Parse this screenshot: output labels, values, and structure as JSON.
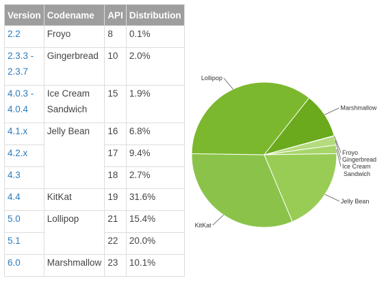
{
  "table": {
    "headers": [
      "Version",
      "Codename",
      "API",
      "Distribution"
    ],
    "rows": [
      {
        "version": "2.2",
        "codename": "Froyo",
        "api": "8",
        "distribution": "0.1%"
      },
      {
        "version": "2.3.3 -\n2.3.7",
        "codename": "Gingerbread",
        "api": "10",
        "distribution": "2.0%"
      },
      {
        "version": "4.0.3 -\n4.0.4",
        "codename": "Ice Cream\nSandwich",
        "api": "15",
        "distribution": "1.9%"
      },
      {
        "version": "4.1.x",
        "codename": "Jelly Bean",
        "api": "16",
        "distribution": "6.8%"
      },
      {
        "version": "4.2.x",
        "codename": "",
        "api": "17",
        "distribution": "9.4%"
      },
      {
        "version": "4.3",
        "codename": "",
        "api": "18",
        "distribution": "2.7%"
      },
      {
        "version": "4.4",
        "codename": "KitKat",
        "api": "19",
        "distribution": "31.6%"
      },
      {
        "version": "5.0",
        "codename": "Lollipop",
        "api": "21",
        "distribution": "15.4%"
      },
      {
        "version": "5.1",
        "codename": "",
        "api": "22",
        "distribution": "20.0%"
      },
      {
        "version": "6.0",
        "codename": "Marshmallow",
        "api": "23",
        "distribution": "10.1%"
      }
    ]
  },
  "chart_data": {
    "type": "pie",
    "title": "",
    "slices": [
      {
        "label": "Froyo",
        "value": 0.1,
        "color": "#c5e39b"
      },
      {
        "label": "Gingerbread",
        "value": 2.0,
        "color": "#b4db7c"
      },
      {
        "label": "Ice Cream Sandwich",
        "value": 1.9,
        "color": "#a6d56a"
      },
      {
        "label": "Jelly Bean",
        "value": 18.9,
        "color": "#99cc55"
      },
      {
        "label": "KitKat",
        "value": 31.6,
        "color": "#8bc34a"
      },
      {
        "label": "Lollipop",
        "value": 35.4,
        "color": "#7cb82e"
      },
      {
        "label": "Marshmallow",
        "value": 10.1,
        "color": "#6aaa1c"
      }
    ]
  }
}
